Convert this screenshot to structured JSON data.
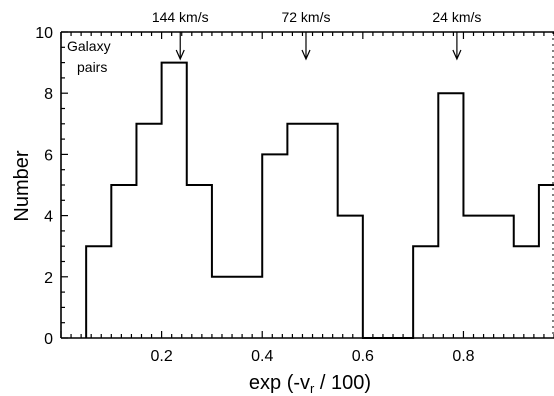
{
  "chart_data": {
    "type": "histogram",
    "title": "",
    "xlabel": "exp (-v",
    "xlabel_sub": "r",
    "xlabel_tail": " / 100)",
    "ylabel": "Number",
    "inset_label_line1": "Galaxy",
    "inset_label_line2": "pairs",
    "xlim": [
      0.0,
      0.98
    ],
    "ylim": [
      0,
      10
    ],
    "bin_width": 0.05,
    "bins_start": [
      0.05,
      0.1,
      0.15,
      0.2,
      0.25,
      0.3,
      0.35,
      0.4,
      0.45,
      0.5,
      0.55,
      0.6,
      0.65,
      0.7,
      0.75,
      0.8,
      0.85,
      0.9,
      0.95
    ],
    "values": [
      3,
      5,
      7,
      9,
      5,
      2,
      2,
      6,
      7,
      7,
      4,
      0,
      0,
      3,
      8,
      4,
      4,
      3,
      5
    ],
    "x_ticks": [
      0.2,
      0.4,
      0.6,
      0.8
    ],
    "x_tick_labels": [
      "0.2",
      "0.4",
      "0.6",
      "0.8"
    ],
    "y_ticks": [
      0,
      2,
      4,
      6,
      8,
      10
    ],
    "y_tick_labels": [
      "0",
      "2",
      "4",
      "6",
      "8",
      "10"
    ],
    "annotations": [
      {
        "text": "144 km/s",
        "x": 0.237
      },
      {
        "text": "72 km/s",
        "x": 0.487
      },
      {
        "text": "24 km/s",
        "x": 0.787
      }
    ],
    "grid": false,
    "legend": "none"
  }
}
